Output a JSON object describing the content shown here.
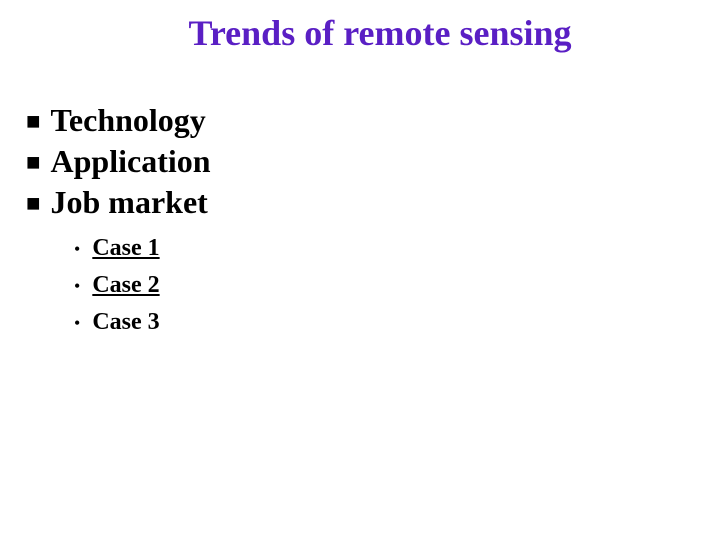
{
  "title": {
    "text": "Trends of remote sensing",
    "color": "#5a1fc4",
    "fontsize": 36,
    "fontweight": "bold"
  },
  "main_items": [
    {
      "label": "Technology"
    },
    {
      "label": "Application"
    },
    {
      "label": "Job market"
    }
  ],
  "sub_items": [
    {
      "label": "Case 1",
      "is_link": true
    },
    {
      "label": "Case 2",
      "is_link": true
    },
    {
      "label": "Case 3",
      "is_link": false
    }
  ],
  "styling": {
    "background_color": "#ffffff",
    "main_text_color": "#000000",
    "main_fontsize": 32,
    "sub_fontsize": 24,
    "bullet_square": "■",
    "bullet_dot": "•",
    "font_family": "Times New Roman"
  }
}
